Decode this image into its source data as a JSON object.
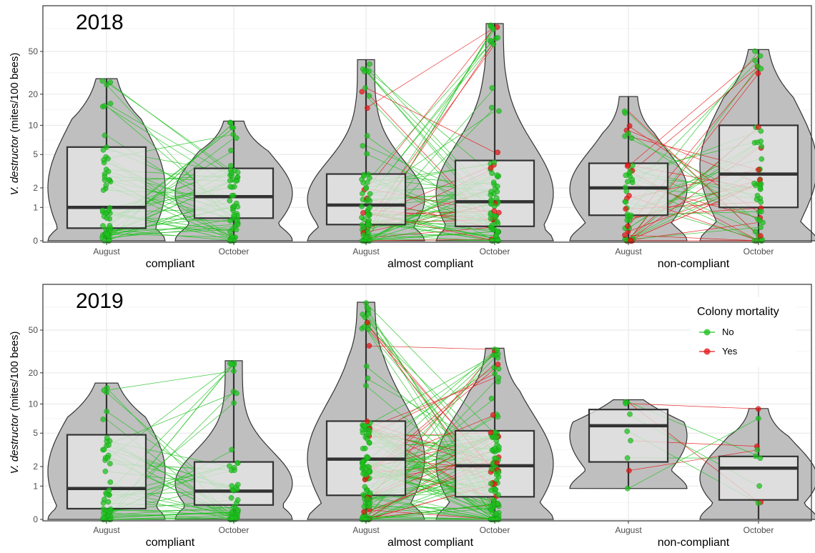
{
  "chart_data": {
    "type": "violin-box-paired",
    "ylabel_italic": "V. destructor",
    "ylabel_rest": "(mites/100 bees)",
    "y_scale": "pseudo-log",
    "y_ticks": [
      0,
      1,
      2,
      5,
      10,
      20,
      50
    ],
    "y_tick_labels": [
      "0",
      "1",
      "2",
      "5",
      "10",
      "20",
      "50"
    ],
    "groups": [
      "compliant",
      "almost compliant",
      "non-compliant"
    ],
    "months": [
      "August",
      "October"
    ],
    "legend": {
      "title": "Colony mortality",
      "position": "top-right",
      "entries": [
        {
          "label": "No",
          "color": "#1fc21f"
        },
        {
          "label": "Yes",
          "color": "#e51a1a"
        }
      ]
    },
    "panels": [
      {
        "year": "2018",
        "boxes": [
          {
            "group": "compliant",
            "month": "August",
            "q1": 0.3,
            "median": 1.0,
            "q3": 6.0,
            "min": 0,
            "max": 28,
            "n": 55,
            "yes_share": 0.0
          },
          {
            "group": "compliant",
            "month": "October",
            "q1": 0.6,
            "median": 1.5,
            "q3": 3.5,
            "min": 0,
            "max": 11,
            "n": 55,
            "yes_share": 0.02
          },
          {
            "group": "almost compliant",
            "month": "August",
            "q1": 0.4,
            "median": 1.1,
            "q3": 3.0,
            "min": 0,
            "max": 42,
            "n": 75,
            "yes_share": 0.12
          },
          {
            "group": "almost compliant",
            "month": "October",
            "q1": 0.35,
            "median": 1.25,
            "q3": 4.3,
            "min": 0,
            "max": 90,
            "n": 75,
            "yes_share": 0.14
          },
          {
            "group": "non-compliant",
            "month": "August",
            "q1": 0.7,
            "median": 2.0,
            "q3": 4.0,
            "min": 0,
            "max": 19,
            "n": 50,
            "yes_share": 0.3
          },
          {
            "group": "non-compliant",
            "month": "October",
            "q1": 1.0,
            "median": 3.0,
            "q3": 10.0,
            "min": 0,
            "max": 52,
            "n": 50,
            "yes_share": 0.3
          }
        ]
      },
      {
        "year": "2019",
        "boxes": [
          {
            "group": "compliant",
            "month": "August",
            "q1": 0.25,
            "median": 0.9,
            "q3": 4.8,
            "min": 0,
            "max": 16,
            "n": 45,
            "yes_share": 0.0
          },
          {
            "group": "compliant",
            "month": "October",
            "q1": 0.35,
            "median": 0.8,
            "q3": 2.3,
            "min": 0,
            "max": 26,
            "n": 45,
            "yes_share": 0.0
          },
          {
            "group": "almost compliant",
            "month": "August",
            "q1": 0.65,
            "median": 2.5,
            "q3": 6.7,
            "min": 0,
            "max": 90,
            "n": 110,
            "yes_share": 0.1
          },
          {
            "group": "almost compliant",
            "month": "October",
            "q1": 0.6,
            "median": 2.05,
            "q3": 5.3,
            "min": 0,
            "max": 34,
            "n": 110,
            "yes_share": 0.1
          },
          {
            "group": "non-compliant",
            "month": "August",
            "q1": 2.3,
            "median": 6.0,
            "q3": 8.8,
            "min": 0.9,
            "max": 11,
            "n": 9,
            "yes_share": 0.12
          },
          {
            "group": "non-compliant",
            "month": "October",
            "q1": 0.5,
            "median": 1.9,
            "q3": 2.7,
            "min": 0,
            "max": 9,
            "n": 9,
            "yes_share": 0.12
          }
        ]
      }
    ]
  }
}
